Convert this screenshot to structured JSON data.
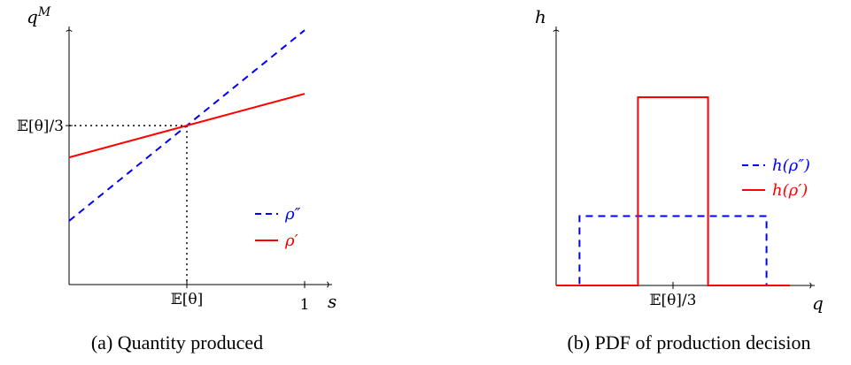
{
  "chart_data": [
    {
      "type": "line",
      "caption": "(a) Quantity produced",
      "xlabel": "s",
      "ylabel": "q^M",
      "xlim": [
        0,
        1.08
      ],
      "ylim": [
        0,
        0.82
      ],
      "x_ticks": [
        {
          "value": 0.5,
          "label": "𝔼[θ]"
        },
        {
          "value": 1,
          "label": "1"
        }
      ],
      "y_ticks": [
        {
          "value": 0.5,
          "label": "𝔼[θ]/3"
        }
      ],
      "reference_lines": {
        "x": 0.5,
        "y": 0.5,
        "style": "dotted"
      },
      "series": [
        {
          "name": "ρ″",
          "color": "#0000ff",
          "dash": "dashed",
          "x": [
            0,
            1
          ],
          "y": [
            0.2,
            0.8
          ]
        },
        {
          "name": "ρ′",
          "color": "#ff0000",
          "dash": "solid",
          "x": [
            0,
            1
          ],
          "y": [
            0.4,
            0.6
          ]
        }
      ],
      "legend": "lower-right"
    },
    {
      "type": "line",
      "caption": "(b) PDF of production decision",
      "xlabel": "q",
      "ylabel": "h",
      "xlim": [
        0,
        1.1
      ],
      "ylim": [
        0,
        1.2
      ],
      "x_ticks": [
        {
          "value": 0.5,
          "label": "𝔼[θ]/3"
        }
      ],
      "series": [
        {
          "name": "h(ρ″)",
          "color": "#0000ff",
          "dash": "dashed",
          "x": [
            0,
            0.1,
            0.1,
            0.9,
            0.9,
            1.0
          ],
          "y": [
            0,
            0,
            0.35,
            0.35,
            0,
            0
          ]
        },
        {
          "name": "h(ρ′)",
          "color": "#ff0000",
          "dash": "solid",
          "x": [
            0,
            0.35,
            0.35,
            0.65,
            0.65,
            1.0
          ],
          "y": [
            0,
            0,
            0.95,
            0.95,
            0,
            0
          ]
        }
      ],
      "legend": "right"
    }
  ]
}
